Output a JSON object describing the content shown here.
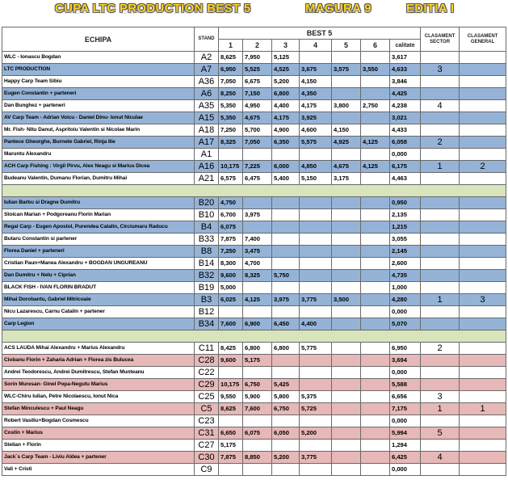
{
  "header": {
    "title": "CUPA  LTC PRODUCTION  BEST 5",
    "event": "MAGURA 9",
    "edition": "EDITIA I"
  },
  "table": {
    "columns": [
      "ECHIPA",
      "STAND",
      "1",
      "2",
      "3",
      "4",
      "5",
      "6",
      "calitate",
      "CLASAMENT SECTOR",
      "CLASAMENT GENERAL"
    ],
    "group": "BEST 5",
    "spacer_color": "#d8e4bc",
    "sections": [
      {
        "rows": [
          {
            "color": "#ffffff",
            "cells": [
              "WLC - Ionascu Bogdan",
              "A2",
              "8,625",
              "7,950",
              "5,125",
              null,
              null,
              null,
              "3,617",
              null,
              null
            ]
          },
          {
            "color": "#95b3d7",
            "cells": [
              "LTC PRODUCTION",
              "A7",
              "6,950",
              "5,525",
              "4,525",
              "3,675",
              "3,575",
              "3,550",
              "4,633",
              "3",
              null
            ]
          },
          {
            "color": "#ffffff",
            "cells": [
              "Happy Carp Team Sibiu",
              "A36",
              "7,050",
              "6,675",
              "5,200",
              "4,150",
              null,
              null,
              "3,846",
              null,
              null
            ]
          },
          {
            "color": "#95b3d7",
            "cells": [
              "Eugen Constantin + parteneri",
              "A6",
              "8,250",
              "7,150",
              "6,800",
              "4,350",
              null,
              null,
              "4,425",
              null,
              null
            ]
          },
          {
            "color": "#ffffff",
            "cells": [
              "Dan Bunghez + parteneri",
              "A35",
              "5,350",
              "4,950",
              "4,400",
              "4,175",
              "3,800",
              "2,750",
              "4,238",
              "4",
              null
            ]
          },
          {
            "color": "#95b3d7",
            "cells": [
              "AV Carp Team - Adrian Voicu - Daniel Dinu- Ionut Niculae",
              "A15",
              "5,350",
              "4,675",
              "4,175",
              "3,925",
              null,
              null,
              "3,021",
              null,
              null
            ]
          },
          {
            "color": "#ffffff",
            "cells": [
              "Mr. Fish- Nitu Danut, Aspritoiu Valentin si Nicolae Marin",
              "A18",
              "7,250",
              "5,700",
              "4,900",
              "4,600",
              "4,150",
              null,
              "4,433",
              null,
              null
            ]
          },
          {
            "color": "#95b3d7",
            "cells": [
              "Pantece Gheorghe, Burnete Gabriel, Rinja Ilie",
              "A17",
              "8,325",
              "7,050",
              "6,350",
              "5,575",
              "4,925",
              "4,125",
              "6,058",
              "2",
              null
            ]
          },
          {
            "color": "#ffffff",
            "cells": [
              "Maruntu Alexandru",
              "A1",
              null,
              null,
              null,
              null,
              null,
              null,
              "0,000",
              null,
              null
            ]
          },
          {
            "color": "#95b3d7",
            "cells": [
              "ACH Carp Fishing : Virgil Pirvu, Alex Neagu si Marius Dicea",
              "A16",
              "10,175",
              "7,225",
              "6,000",
              "4,850",
              "4,675",
              "4,125",
              "6,175",
              "1",
              "2"
            ]
          },
          {
            "color": "#ffffff",
            "cells": [
              "Budeanu Valentin, Dumanu Florian, Dumitru Mihai",
              "A21",
              "6,575",
              "6,475",
              "5,400",
              "5,150",
              "3,175",
              null,
              "4,463",
              null,
              null
            ]
          }
        ]
      },
      {
        "rows": [
          {
            "color": "#95b3d7",
            "cells": [
              "Iulian Barbu si Dragne Dumitru",
              "B20",
              "4,750",
              null,
              null,
              null,
              null,
              null,
              "0,950",
              null,
              null
            ]
          },
          {
            "color": "#ffffff",
            "cells": [
              "Stoican Marian + Podgoreanu Florin Marian",
              "B10",
              "6,700",
              "3,975",
              null,
              null,
              null,
              null,
              "2,135",
              null,
              null
            ]
          },
          {
            "color": "#95b3d7",
            "cells": [
              "Regal Carp - Eugen Apostol, Purendea Catalin, Circiumaru Raducu",
              "B4",
              "6,075",
              null,
              null,
              null,
              null,
              null,
              "1,215",
              null,
              null
            ]
          },
          {
            "color": "#ffffff",
            "cells": [
              "Butaru Constantin si partener",
              "B33",
              "7,875",
              "7,400",
              null,
              null,
              null,
              null,
              "3,055",
              null,
              null
            ]
          },
          {
            "color": "#95b3d7",
            "cells": [
              "Florea Daniel + parteneri",
              "B8",
              "7,250",
              "3,475",
              null,
              null,
              null,
              null,
              "2,145",
              null,
              null
            ]
          },
          {
            "color": "#ffffff",
            "cells": [
              "Cristian Paun+Manea Alexandru + BOGDAN UNGUREANU",
              "B14",
              "8,300",
              "4,700",
              null,
              null,
              null,
              null,
              "2,600",
              null,
              null
            ]
          },
          {
            "color": "#95b3d7",
            "cells": [
              "Dan Dumitru + Nelu + Ciprian",
              "B32",
              "9,600",
              "8,325",
              "5,750",
              null,
              null,
              null,
              "4,735",
              null,
              null
            ]
          },
          {
            "color": "#ffffff",
            "cells": [
              "BLACK FISH - IVAN FLORIN BRADUT",
              "B19",
              "5,000",
              null,
              null,
              null,
              null,
              null,
              "1,000",
              null,
              null
            ]
          },
          {
            "color": "#95b3d7",
            "cells": [
              "Mihai Dorobantu, Gabriel Mitricoaie",
              "B3",
              "6,025",
              "4,125",
              "3,975",
              "3,775",
              "3,500",
              null,
              "4,280",
              "1",
              "3"
            ]
          },
          {
            "color": "#ffffff",
            "cells": [
              "Nicu Lazarescu, Carnu Catalin + partener",
              "B12",
              null,
              null,
              null,
              null,
              null,
              null,
              "0,000",
              null,
              null
            ]
          },
          {
            "color": "#95b3d7",
            "cells": [
              "Carp Legion",
              "B34",
              "7,600",
              "6,900",
              "6,450",
              "4,400",
              null,
              null,
              "5,070",
              null,
              null
            ]
          }
        ]
      },
      {
        "rows": [
          {
            "color": "#ffffff",
            "cells": [
              "ACS LAUDA Mihai Alexandru + Marius Alexandru",
              "C11",
              "8,425",
              "6,800",
              "6,800",
              "5,775",
              null,
              null,
              "6,950",
              "2",
              null
            ]
          },
          {
            "color": "#e6b8b7",
            "cells": [
              "Ciobanu Florin + Zaharia Adrian + Florea zis Bulucea",
              "C28",
              "9,600",
              "5,175",
              null,
              null,
              null,
              null,
              "3,694",
              null,
              null
            ]
          },
          {
            "color": "#ffffff",
            "cells": [
              "Andrei Teodorescu, Andrei Dumitrescu, Stefan Munteanu",
              "C22",
              null,
              null,
              null,
              null,
              null,
              null,
              "0,000",
              null,
              null
            ]
          },
          {
            "color": "#e6b8b7",
            "cells": [
              "Sorin Muresan- Ginel Popa-Negutu Marius",
              "C29",
              "10,175",
              "6,750",
              "5,425",
              null,
              null,
              null,
              "5,588",
              null,
              null
            ]
          },
          {
            "color": "#ffffff",
            "cells": [
              "WLC-Chiru Iulian, Petre Nicolaescu, Ionut Nica",
              "C25",
              "9,550",
              "5,900",
              "5,800",
              "5,375",
              null,
              null,
              "6,656",
              "3",
              null
            ]
          },
          {
            "color": "#e6b8b7",
            "cells": [
              "Stefan Minculescu + Paul Neagu",
              "C5",
              "8,625",
              "7,600",
              "6,750",
              "5,725",
              null,
              null,
              "7,175",
              "1",
              "1"
            ]
          },
          {
            "color": "#ffffff",
            "cells": [
              "Robert Vasiliu+Bogdan Cosmescu",
              "C23",
              null,
              null,
              null,
              null,
              null,
              null,
              "0,000",
              null,
              null
            ]
          },
          {
            "color": "#e6b8b7",
            "cells": [
              "Costin + Marius",
              "C31",
              "6,650",
              "6,075",
              "6,050",
              "5,200",
              null,
              null,
              "5,994",
              "5",
              null
            ]
          },
          {
            "color": "#ffffff",
            "cells": [
              "Stelian + Florin",
              "C27",
              "5,175",
              null,
              null,
              null,
              null,
              null,
              "1,294",
              null,
              null
            ]
          },
          {
            "color": "#e6b8b7",
            "cells": [
              "Jack`s Carp Team - Liviu Aldea + partener",
              "C30",
              "7,875",
              "8,850",
              "5,200",
              "3,775",
              null,
              null,
              "6,425",
              "4",
              null
            ]
          },
          {
            "color": "#ffffff",
            "cells": [
              "Vali + Cristi",
              "C9",
              null,
              null,
              null,
              null,
              null,
              null,
              "0,000",
              null,
              null
            ]
          }
        ]
      }
    ]
  }
}
